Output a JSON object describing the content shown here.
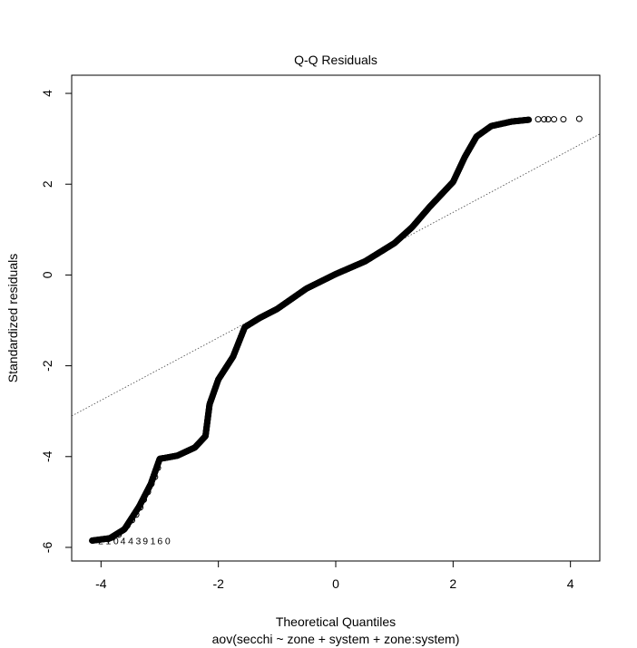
{
  "chart_data": {
    "type": "scatter",
    "title": "Q-Q Residuals",
    "xlabel": "Theoretical Quantiles",
    "ylabel": "Standardized residuals",
    "subtitle": "aov(secchi ~ zone + system + zone:system)",
    "xlim": [
      -4.5,
      4.5
    ],
    "ylim": [
      -6.3,
      4.4
    ],
    "x_ticks": [
      -4,
      -2,
      0,
      2,
      4
    ],
    "y_ticks": [
      -6,
      -4,
      -2,
      0,
      2,
      4
    ],
    "x_tick_labels": [
      "-4",
      "-2",
      "0",
      "2",
      "4"
    ],
    "y_tick_labels": [
      "-6",
      "-4",
      "-2",
      "0",
      "2",
      "4"
    ],
    "grid": false,
    "reference_line": {
      "style": "dotted",
      "slope": 0.69,
      "intercept": 0.0
    },
    "curve_knots": [
      {
        "x": -4.15,
        "y": -5.85
      },
      {
        "x": -3.85,
        "y": -5.8
      },
      {
        "x": -3.6,
        "y": -5.6
      },
      {
        "x": -3.35,
        "y": -5.1
      },
      {
        "x": -3.15,
        "y": -4.6
      },
      {
        "x": -3.0,
        "y": -4.05
      },
      {
        "x": -2.7,
        "y": -3.98
      },
      {
        "x": -2.4,
        "y": -3.8
      },
      {
        "x": -2.22,
        "y": -3.55
      },
      {
        "x": -2.15,
        "y": -2.85
      },
      {
        "x": -2.0,
        "y": -2.3
      },
      {
        "x": -1.75,
        "y": -1.8
      },
      {
        "x": -1.55,
        "y": -1.15
      },
      {
        "x": -1.3,
        "y": -0.95
      },
      {
        "x": -1.0,
        "y": -0.75
      },
      {
        "x": -0.5,
        "y": -0.3
      },
      {
        "x": 0.0,
        "y": 0.02
      },
      {
        "x": 0.5,
        "y": 0.3
      },
      {
        "x": 1.0,
        "y": 0.7
      },
      {
        "x": 1.3,
        "y": 1.05
      },
      {
        "x": 1.6,
        "y": 1.5
      },
      {
        "x": 2.0,
        "y": 2.05
      },
      {
        "x": 2.2,
        "y": 2.6
      },
      {
        "x": 2.4,
        "y": 3.05
      },
      {
        "x": 2.65,
        "y": 3.28
      },
      {
        "x": 3.0,
        "y": 3.38
      },
      {
        "x": 3.3,
        "y": 3.42
      }
    ],
    "sparse_points": [
      {
        "x": 3.45,
        "y": 3.43
      },
      {
        "x": 3.55,
        "y": 3.43
      },
      {
        "x": 3.62,
        "y": 3.43
      },
      {
        "x": 3.72,
        "y": 3.43
      },
      {
        "x": 3.88,
        "y": 3.43
      },
      {
        "x": 4.15,
        "y": 3.44
      },
      {
        "x": -4.15,
        "y": -5.85
      },
      {
        "x": -3.97,
        "y": -5.82
      },
      {
        "x": -3.88,
        "y": -5.82
      },
      {
        "x": -3.8,
        "y": -5.78
      },
      {
        "x": -3.7,
        "y": -5.72
      },
      {
        "x": -3.62,
        "y": -5.62
      },
      {
        "x": -3.55,
        "y": -5.52
      },
      {
        "x": -3.47,
        "y": -5.4
      },
      {
        "x": -3.4,
        "y": -5.28
      },
      {
        "x": -3.33,
        "y": -5.12
      },
      {
        "x": -3.27,
        "y": -4.95
      },
      {
        "x": -3.2,
        "y": -4.78
      },
      {
        "x": -3.14,
        "y": -4.6
      },
      {
        "x": -3.08,
        "y": -4.45
      },
      {
        "x": -3.03,
        "y": -4.25
      }
    ],
    "point_labels": [
      {
        "text": "2",
        "x": -4.05,
        "y": -5.85
      },
      {
        "text": "1",
        "x": -3.92,
        "y": -5.85
      },
      {
        "text": "0",
        "x": -3.79,
        "y": -5.85
      },
      {
        "text": "4",
        "x": -3.67,
        "y": -5.85
      },
      {
        "text": "4",
        "x": -3.54,
        "y": -5.85
      },
      {
        "text": "3",
        "x": -3.41,
        "y": -5.85
      },
      {
        "text": "9",
        "x": -3.29,
        "y": -5.85
      },
      {
        "text": "1",
        "x": -3.16,
        "y": -5.85
      },
      {
        "text": "6",
        "x": -3.04,
        "y": -5.85
      },
      {
        "text": "0",
        "x": -2.91,
        "y": -5.85
      }
    ]
  }
}
